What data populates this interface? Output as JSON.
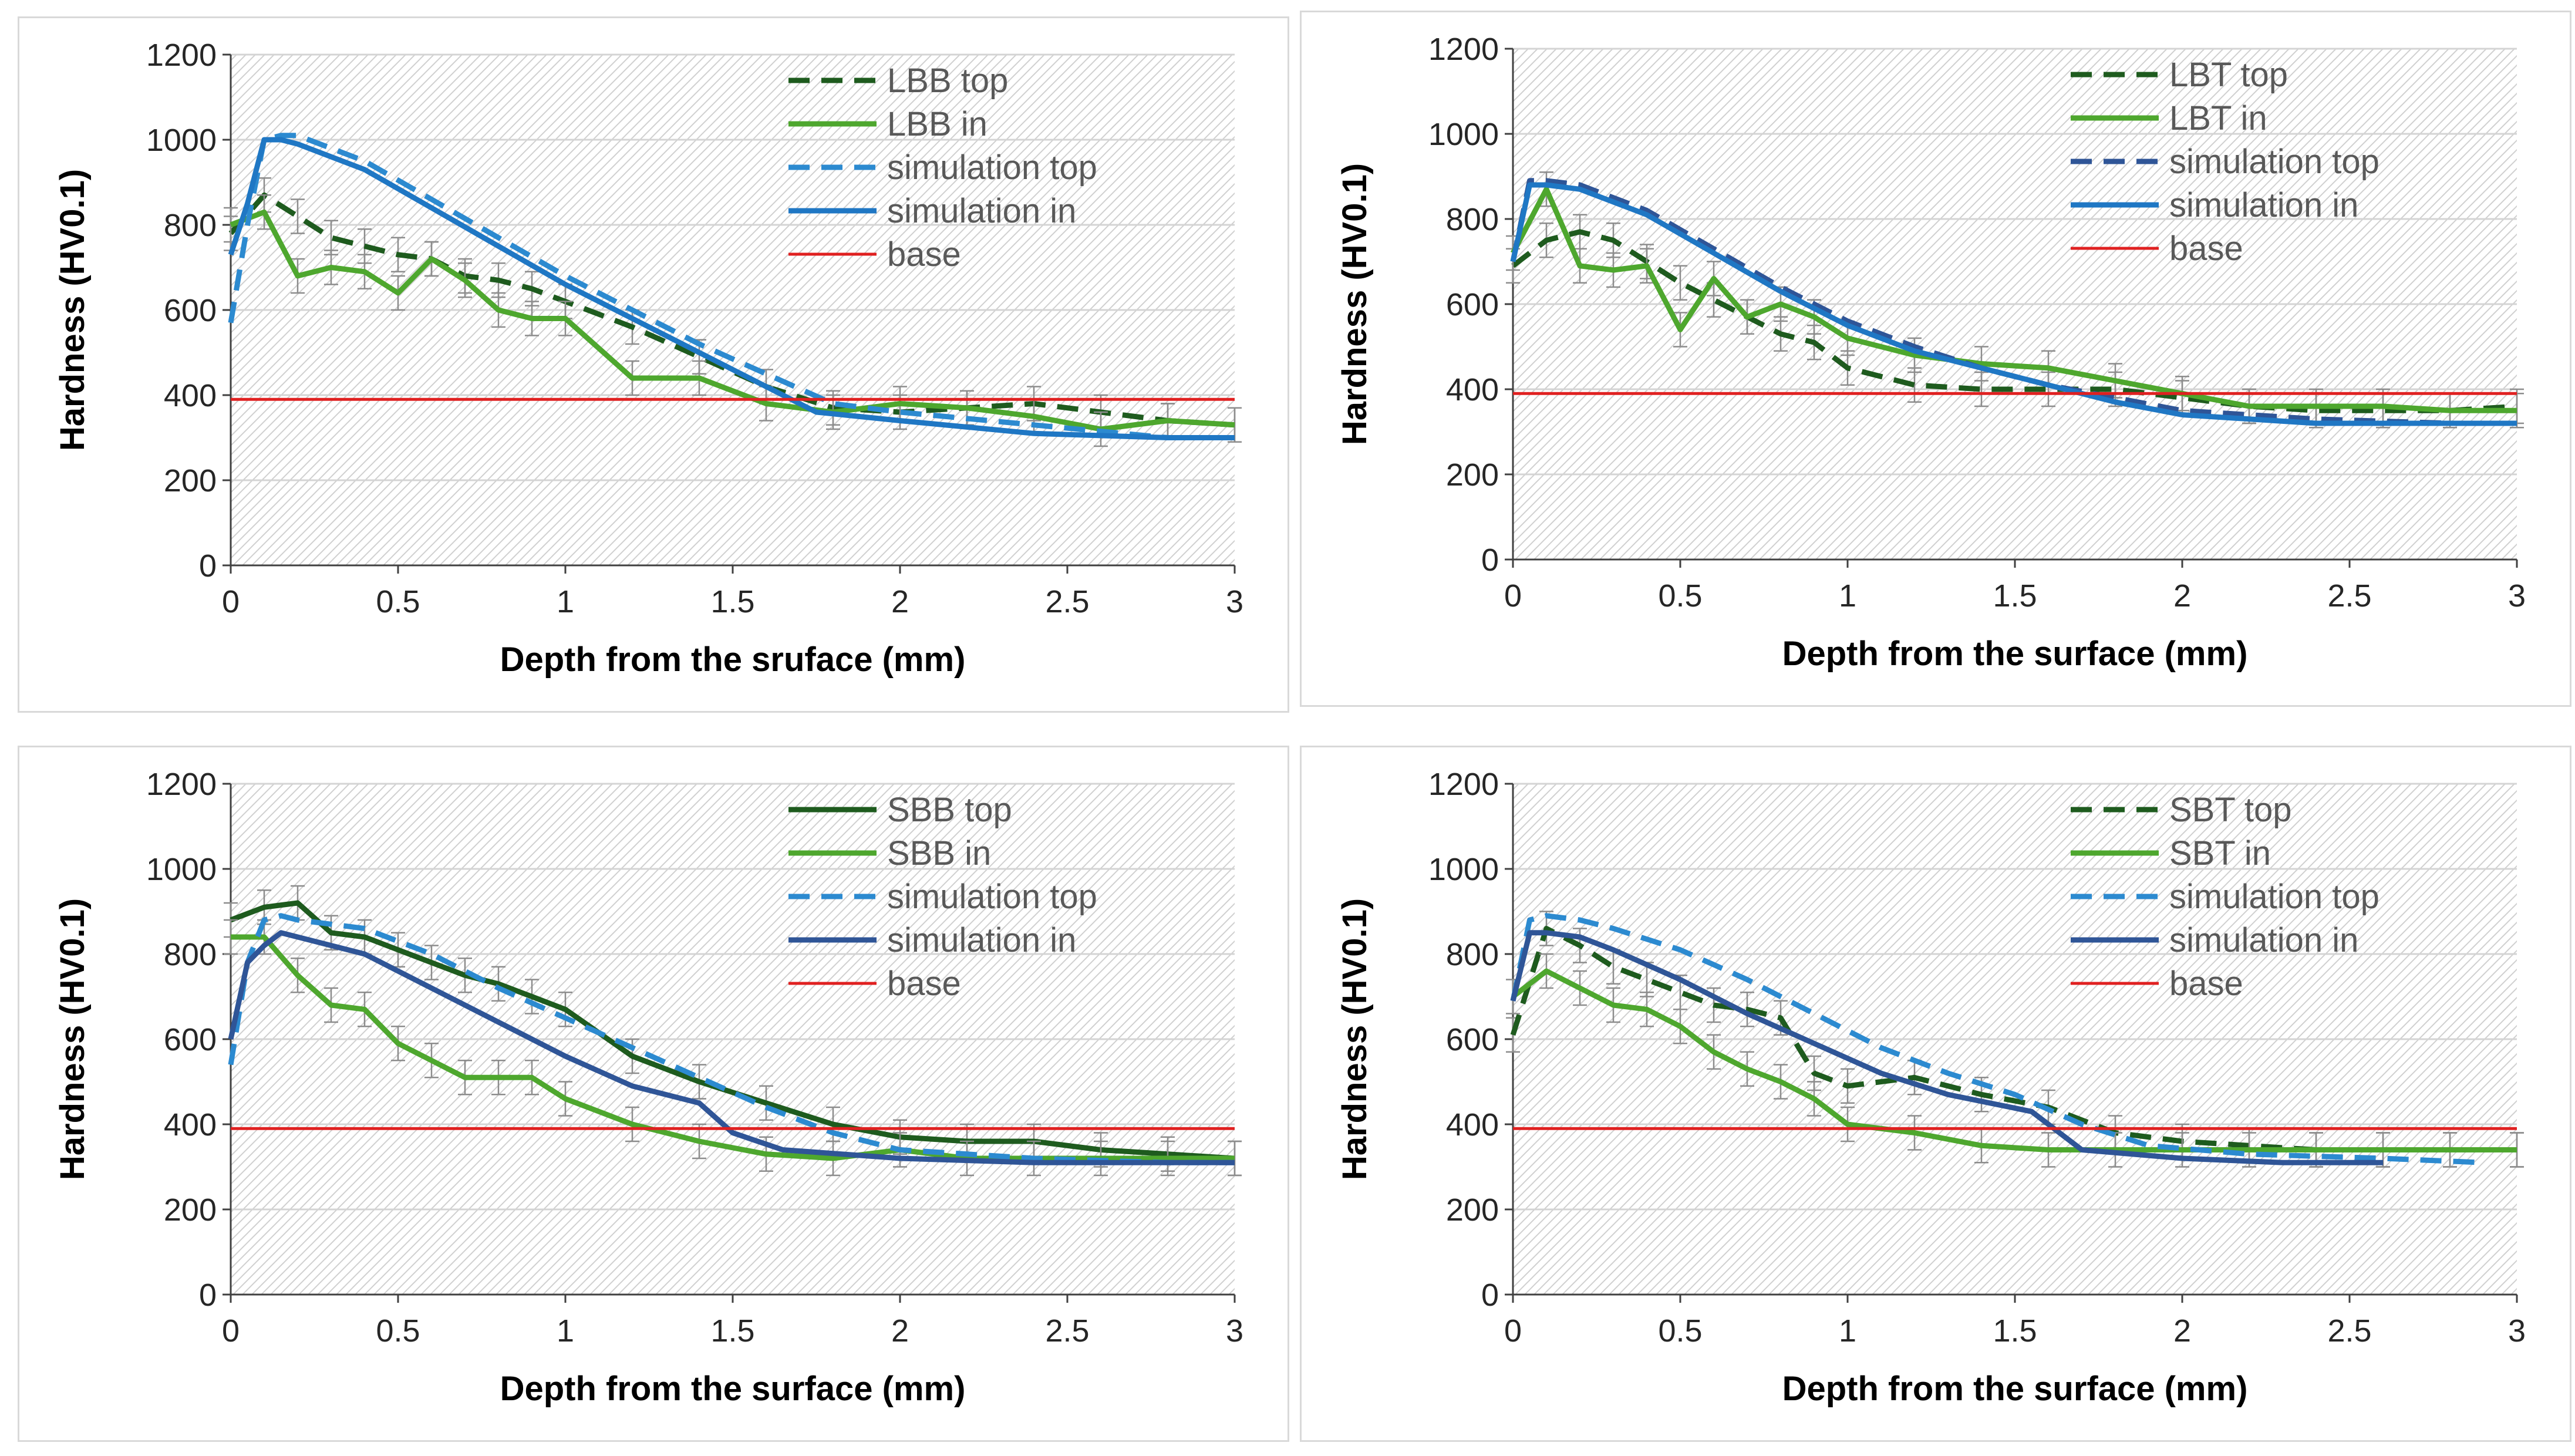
{
  "chart_data": [
    {
      "type": "line",
      "xlabel": "Depth from the sruface (mm)",
      "ylabel": "Hardness (HV0.1)",
      "xlim": [
        0,
        3
      ],
      "ylim": [
        0,
        1200
      ],
      "x_ticks": [
        "0",
        "0.5",
        "1",
        "1.5",
        "2",
        "2.5",
        "3"
      ],
      "y_ticks": [
        "0",
        "200",
        "400",
        "600",
        "800",
        "1000",
        "1200"
      ],
      "grid": true,
      "legend_position": "top-right",
      "series": [
        {
          "name": "LBB top",
          "color": "#1e5b1e",
          "dash": "dashed",
          "error_bars": true,
          "x": [
            0,
            0.1,
            0.2,
            0.3,
            0.4,
            0.5,
            0.6,
            0.7,
            0.8,
            0.9,
            1.0,
            1.2,
            1.4,
            1.6,
            1.8,
            2.0,
            2.2,
            2.4,
            2.6,
            2.8,
            3.0
          ],
          "y": [
            780,
            870,
            820,
            770,
            750,
            730,
            720,
            680,
            670,
            650,
            620,
            560,
            490,
            420,
            370,
            360,
            370,
            380,
            360,
            340,
            330
          ]
        },
        {
          "name": "LBB in",
          "color": "#4ea72e",
          "dash": "solid",
          "error_bars": true,
          "x": [
            0,
            0.1,
            0.2,
            0.3,
            0.4,
            0.5,
            0.6,
            0.7,
            0.8,
            0.9,
            1.0,
            1.2,
            1.4,
            1.6,
            1.8,
            2.0,
            2.2,
            2.4,
            2.6,
            2.8,
            3.0
          ],
          "y": [
            800,
            830,
            680,
            700,
            690,
            640,
            720,
            670,
            600,
            580,
            580,
            440,
            440,
            380,
            360,
            380,
            370,
            350,
            320,
            340,
            330
          ]
        },
        {
          "name": "simulation top",
          "color": "#2c8ad0",
          "dash": "dashed",
          "error_bars": false,
          "x": [
            0,
            0.05,
            0.1,
            0.15,
            0.2,
            0.4,
            0.6,
            0.8,
            1.0,
            1.2,
            1.4,
            1.6,
            1.8,
            2.0,
            2.4,
            2.8,
            3.0
          ],
          "y": [
            570,
            800,
            1000,
            1010,
            1010,
            950,
            860,
            770,
            680,
            600,
            520,
            450,
            380,
            360,
            330,
            300,
            300
          ]
        },
        {
          "name": "simulation in",
          "color": "#1f77c4",
          "dash": "solid",
          "error_bars": false,
          "x": [
            0,
            0.05,
            0.1,
            0.15,
            0.2,
            0.4,
            0.6,
            0.8,
            1.0,
            1.2,
            1.4,
            1.6,
            1.75,
            2.0,
            2.4,
            2.8,
            3.0
          ],
          "y": [
            730,
            850,
            1000,
            1000,
            990,
            930,
            840,
            750,
            660,
            580,
            500,
            420,
            360,
            340,
            310,
            300,
            300
          ]
        },
        {
          "name": "base",
          "color": "#e02020",
          "dash": "solid",
          "error_bars": false,
          "x": [
            0,
            3
          ],
          "y": [
            390,
            390
          ]
        }
      ]
    },
    {
      "type": "line",
      "xlabel": "Depth from the surface (mm)",
      "ylabel": "Hardness  (HV0.1)",
      "xlim": [
        0,
        3
      ],
      "ylim": [
        0,
        1200
      ],
      "x_ticks": [
        "0",
        "0.5",
        "1",
        "1.5",
        "2",
        "2.5",
        "3"
      ],
      "y_ticks": [
        "0",
        "200",
        "400",
        "600",
        "800",
        "1000",
        "1200"
      ],
      "grid": true,
      "legend_position": "top-right",
      "series": [
        {
          "name": "LBT top",
          "color": "#1e5b1e",
          "dash": "dashed",
          "error_bars": true,
          "x": [
            0,
            0.1,
            0.2,
            0.3,
            0.4,
            0.5,
            0.6,
            0.7,
            0.8,
            0.9,
            1.0,
            1.2,
            1.4,
            1.6,
            1.8,
            2.0,
            2.2,
            2.4,
            2.6,
            2.8,
            3.0
          ],
          "y": [
            690,
            750,
            770,
            750,
            700,
            650,
            610,
            570,
            530,
            510,
            450,
            410,
            400,
            400,
            400,
            380,
            360,
            350,
            350,
            350,
            360
          ]
        },
        {
          "name": "LBT in",
          "color": "#4ea72e",
          "dash": "solid",
          "error_bars": true,
          "x": [
            0,
            0.1,
            0.2,
            0.3,
            0.4,
            0.5,
            0.6,
            0.7,
            0.8,
            0.9,
            1.0,
            1.2,
            1.4,
            1.6,
            1.8,
            2.0,
            2.2,
            2.4,
            2.6,
            2.8,
            3.0
          ],
          "y": [
            720,
            870,
            690,
            680,
            690,
            540,
            660,
            570,
            600,
            570,
            520,
            480,
            460,
            450,
            420,
            390,
            360,
            360,
            360,
            350,
            350
          ]
        },
        {
          "name": "simulation top",
          "color": "#2f5597",
          "dash": "dashed",
          "error_bars": false,
          "x": [
            0,
            0.05,
            0.1,
            0.2,
            0.4,
            0.6,
            0.8,
            1.0,
            1.2,
            1.4,
            1.6,
            1.8,
            2.0,
            2.4,
            2.8,
            3.0
          ],
          "y": [
            700,
            890,
            890,
            880,
            820,
            730,
            640,
            560,
            500,
            450,
            410,
            380,
            350,
            330,
            320,
            320
          ]
        },
        {
          "name": "simulation in",
          "color": "#1f77c4",
          "dash": "solid",
          "error_bars": false,
          "x": [
            0,
            0.05,
            0.1,
            0.2,
            0.4,
            0.6,
            0.8,
            1.0,
            1.2,
            1.4,
            1.6,
            1.8,
            2.0,
            2.4,
            2.8,
            3.0
          ],
          "y": [
            700,
            880,
            880,
            870,
            810,
            720,
            630,
            550,
            490,
            450,
            410,
            370,
            340,
            320,
            320,
            320
          ]
        },
        {
          "name": "base",
          "color": "#e02020",
          "dash": "solid",
          "error_bars": false,
          "x": [
            0,
            3
          ],
          "y": [
            390,
            390
          ]
        }
      ]
    },
    {
      "type": "line",
      "xlabel": "Depth from the surface (mm)",
      "ylabel": "Hardness (HV0.1)",
      "xlim": [
        0,
        3
      ],
      "ylim": [
        0,
        1200
      ],
      "x_ticks": [
        "0",
        "0.5",
        "1",
        "1.5",
        "2",
        "2.5",
        "3"
      ],
      "y_ticks": [
        "0",
        "200",
        "400",
        "600",
        "800",
        "1000",
        "1200"
      ],
      "grid": true,
      "legend_position": "top-right",
      "series": [
        {
          "name": "SBB top",
          "color": "#1e5b1e",
          "dash": "solid",
          "error_bars": true,
          "x": [
            0,
            0.1,
            0.2,
            0.3,
            0.4,
            0.5,
            0.6,
            0.7,
            0.8,
            0.9,
            1.0,
            1.2,
            1.4,
            1.6,
            1.8,
            2.0,
            2.2,
            2.4,
            2.6,
            2.8,
            3.0
          ],
          "y": [
            880,
            910,
            920,
            850,
            840,
            810,
            780,
            750,
            730,
            700,
            670,
            560,
            500,
            450,
            400,
            370,
            360,
            360,
            340,
            330,
            320
          ]
        },
        {
          "name": "SBB in",
          "color": "#4ea72e",
          "dash": "solid",
          "error_bars": true,
          "x": [
            0,
            0.1,
            0.2,
            0.3,
            0.4,
            0.5,
            0.6,
            0.7,
            0.8,
            0.9,
            1.0,
            1.2,
            1.4,
            1.6,
            1.8,
            2.0,
            2.2,
            2.4,
            2.6,
            2.8,
            3.0
          ],
          "y": [
            840,
            840,
            750,
            680,
            670,
            590,
            550,
            510,
            510,
            510,
            460,
            400,
            360,
            330,
            320,
            340,
            320,
            320,
            320,
            320,
            320
          ]
        },
        {
          "name": "simulation top",
          "color": "#2c8ad0",
          "dash": "dashed",
          "error_bars": false,
          "x": [
            0,
            0.05,
            0.1,
            0.15,
            0.2,
            0.4,
            0.6,
            0.8,
            1.0,
            1.2,
            1.4,
            1.6,
            1.8,
            2.0,
            2.4,
            2.8,
            3.0
          ],
          "y": [
            540,
            780,
            880,
            890,
            880,
            860,
            800,
            720,
            650,
            580,
            510,
            440,
            380,
            340,
            320,
            310,
            310
          ]
        },
        {
          "name": "simulation in",
          "color": "#2f5597",
          "dash": "solid",
          "error_bars": false,
          "x": [
            0,
            0.05,
            0.1,
            0.15,
            0.2,
            0.4,
            0.6,
            0.8,
            1.0,
            1.2,
            1.4,
            1.5,
            1.65,
            2.0,
            2.4,
            2.8,
            3.0
          ],
          "y": [
            600,
            780,
            820,
            850,
            840,
            800,
            720,
            640,
            560,
            490,
            450,
            380,
            340,
            320,
            310,
            310,
            310
          ]
        },
        {
          "name": "base",
          "color": "#e02020",
          "dash": "solid",
          "error_bars": false,
          "x": [
            0,
            3
          ],
          "y": [
            390,
            390
          ]
        }
      ]
    },
    {
      "type": "line",
      "xlabel": "Depth from the surface (mm)",
      "ylabel": "Hardness  (HV0.1)",
      "xlim": [
        0,
        3
      ],
      "ylim": [
        0,
        1200
      ],
      "x_ticks": [
        "0",
        "0.5",
        "1",
        "1.5",
        "2",
        "2.5",
        "3"
      ],
      "y_ticks": [
        "0",
        "200",
        "400",
        "600",
        "800",
        "1000",
        "1200"
      ],
      "grid": true,
      "legend_position": "top-right",
      "series": [
        {
          "name": "SBT top",
          "color": "#1e5b1e",
          "dash": "dashed",
          "error_bars": true,
          "x": [
            0,
            0.1,
            0.2,
            0.3,
            0.4,
            0.5,
            0.6,
            0.7,
            0.8,
            0.9,
            1.0,
            1.2,
            1.4,
            1.6,
            1.8,
            2.0,
            2.2,
            2.4,
            2.6,
            2.8,
            3.0
          ],
          "y": [
            610,
            860,
            820,
            770,
            740,
            710,
            680,
            670,
            650,
            520,
            490,
            510,
            470,
            440,
            380,
            360,
            350,
            340,
            340,
            340,
            340
          ]
        },
        {
          "name": "SBT in",
          "color": "#4ea72e",
          "dash": "solid",
          "error_bars": true,
          "x": [
            0,
            0.1,
            0.2,
            0.3,
            0.4,
            0.5,
            0.6,
            0.7,
            0.8,
            0.9,
            1.0,
            1.2,
            1.4,
            1.6,
            1.8,
            2.0,
            2.2,
            2.4,
            2.6,
            2.8,
            3.0
          ],
          "y": [
            700,
            760,
            720,
            680,
            670,
            630,
            570,
            530,
            500,
            460,
            400,
            380,
            350,
            340,
            340,
            340,
            340,
            340,
            340,
            340,
            340
          ]
        },
        {
          "name": "simulation top",
          "color": "#2c8ad0",
          "dash": "dashed",
          "error_bars": false,
          "x": [
            0,
            0.05,
            0.1,
            0.2,
            0.3,
            0.5,
            0.7,
            0.9,
            1.1,
            1.3,
            1.5,
            1.7,
            1.9,
            2.2,
            2.6,
            2.9
          ],
          "y": [
            690,
            880,
            890,
            880,
            860,
            810,
            740,
            660,
            580,
            520,
            470,
            400,
            350,
            330,
            320,
            310
          ]
        },
        {
          "name": "simulation in",
          "color": "#2f5597",
          "dash": "solid",
          "error_bars": false,
          "x": [
            0,
            0.05,
            0.1,
            0.2,
            0.3,
            0.5,
            0.7,
            0.9,
            1.1,
            1.3,
            1.55,
            1.7,
            2.0,
            2.3,
            2.6
          ],
          "y": [
            690,
            850,
            850,
            840,
            810,
            740,
            660,
            590,
            520,
            470,
            430,
            340,
            320,
            310,
            310
          ]
        },
        {
          "name": "base",
          "color": "#e02020",
          "dash": "solid",
          "error_bars": false,
          "x": [
            0,
            3
          ],
          "y": [
            390,
            390
          ]
        }
      ]
    }
  ]
}
